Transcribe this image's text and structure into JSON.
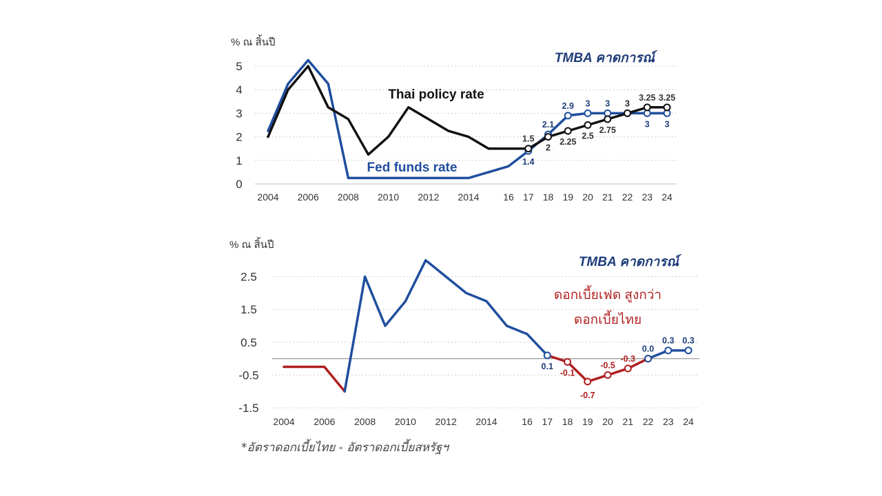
{
  "footnote": "*อัตราดอกเบี้ยไทย - อัตราดอกเบี้ยสหรัฐฯ",
  "chart_data": [
    {
      "type": "line",
      "unit_label": "% ณ สิ้นปี",
      "forecast_label": "TMBA คาดการณ์",
      "ylim": [
        0,
        5.5
      ],
      "yticks": [
        0,
        1,
        2,
        3,
        4,
        5
      ],
      "x_ticks": [
        {
          "x": 2004,
          "label": "2004"
        },
        {
          "x": 2006,
          "label": "2006"
        },
        {
          "x": 2008,
          "label": "2008"
        },
        {
          "x": 2010,
          "label": "2010"
        },
        {
          "x": 2012,
          "label": "2012"
        },
        {
          "x": 2014,
          "label": "2014"
        },
        {
          "x": 2016,
          "label": "16"
        },
        {
          "x": 2017,
          "label": "17"
        },
        {
          "x": 2018,
          "label": "18"
        },
        {
          "x": 2019,
          "label": "19"
        },
        {
          "x": 2020,
          "label": "20"
        },
        {
          "x": 2021,
          "label": "21"
        },
        {
          "x": 2022,
          "label": "22"
        },
        {
          "x": 2023,
          "label": "23"
        },
        {
          "x": 2024,
          "label": "24"
        }
      ],
      "grid": "horizontal dotted",
      "series": [
        {
          "name": "Fed funds rate",
          "color": "#1f4e9e",
          "points": [
            [
              2004,
              2.25
            ],
            [
              2005,
              4.25
            ],
            [
              2006,
              5.25
            ],
            [
              2007,
              4.25
            ],
            [
              2008,
              0.25
            ],
            [
              2009,
              0.25
            ],
            [
              2010,
              0.25
            ],
            [
              2011,
              0.25
            ],
            [
              2012,
              0.25
            ],
            [
              2013,
              0.25
            ],
            [
              2014,
              0.25
            ],
            [
              2015,
              0.5
            ],
            [
              2016,
              0.75
            ],
            [
              2017,
              1.4
            ],
            [
              2018,
              2.1
            ],
            [
              2019,
              2.9
            ],
            [
              2020,
              3
            ],
            [
              2021,
              3
            ],
            [
              2022,
              3
            ],
            [
              2023,
              3
            ],
            [
              2024,
              3
            ]
          ],
          "forecast_from": 2017,
          "labels": [
            {
              "x": 2017,
              "text": "1.4",
              "pos": "below"
            },
            {
              "x": 2018,
              "text": "2.1",
              "pos": "above"
            },
            {
              "x": 2019,
              "text": "2.9",
              "pos": "above"
            },
            {
              "x": 2020,
              "text": "3",
              "pos": "above"
            },
            {
              "x": 2021,
              "text": "3",
              "pos": "above"
            },
            {
              "x": 2022,
              "text": "3",
              "pos": "above"
            },
            {
              "x": 2023,
              "text": "3",
              "pos": "below"
            },
            {
              "x": 2024,
              "text": "3",
              "pos": "below"
            }
          ],
          "label_color": "#1f3d7a"
        },
        {
          "name": "Thai policy rate",
          "color": "#111111",
          "points": [
            [
              2004,
              2
            ],
            [
              2005,
              4
            ],
            [
              2006,
              5
            ],
            [
              2007,
              3.25
            ],
            [
              2008,
              2.75
            ],
            [
              2009,
              1.25
            ],
            [
              2010,
              2
            ],
            [
              2011,
              3.25
            ],
            [
              2012,
              2.75
            ],
            [
              2013,
              2.25
            ],
            [
              2014,
              2
            ],
            [
              2015,
              1.5
            ],
            [
              2016,
              1.5
            ],
            [
              2017,
              1.5
            ],
            [
              2018,
              2
            ],
            [
              2019,
              2.25
            ],
            [
              2020,
              2.5
            ],
            [
              2021,
              2.75
            ],
            [
              2022,
              3
            ],
            [
              2023,
              3.25
            ],
            [
              2024,
              3.25
            ]
          ],
          "forecast_from": 2017,
          "labels": [
            {
              "x": 2017,
              "text": "1.5",
              "pos": "above"
            },
            {
              "x": 2018,
              "text": "2",
              "pos": "below"
            },
            {
              "x": 2019,
              "text": "2.25",
              "pos": "below"
            },
            {
              "x": 2020,
              "text": "2.5",
              "pos": "below"
            },
            {
              "x": 2021,
              "text": "2.75",
              "pos": "below"
            },
            {
              "x": 2022,
              "text": "3",
              "pos": "above"
            },
            {
              "x": 2023,
              "text": "3.25",
              "pos": "above"
            },
            {
              "x": 2024,
              "text": "3.25",
              "pos": "above"
            }
          ],
          "label_color": "#333333"
        }
      ]
    },
    {
      "type": "line",
      "unit_label": "% ณ สิ้นปี",
      "forecast_label": "TMBA คาดการณ์",
      "annotation": [
        "ดอกเบี้ยเฟด สูงกว่า",
        "ดอกเบี้ยไทย"
      ],
      "annotation_color": "#b22222",
      "ylim": [
        -1.5,
        3.2
      ],
      "yticks": [
        -1.5,
        -0.5,
        0.5,
        1.5,
        2.5
      ],
      "ytick_labels": [
        "-1.5",
        "-0.5",
        "0.5",
        "1.5",
        "2.5"
      ],
      "x_ticks": [
        {
          "x": 2004,
          "label": "2004"
        },
        {
          "x": 2006,
          "label": "2006"
        },
        {
          "x": 2008,
          "label": "2008"
        },
        {
          "x": 2010,
          "label": "2010"
        },
        {
          "x": 2012,
          "label": "2012"
        },
        {
          "x": 2014,
          "label": "2014"
        },
        {
          "x": 2016,
          "label": "16"
        },
        {
          "x": 2017,
          "label": "17"
        },
        {
          "x": 2018,
          "label": "18"
        },
        {
          "x": 2019,
          "label": "19"
        },
        {
          "x": 2020,
          "label": "20"
        },
        {
          "x": 2021,
          "label": "21"
        },
        {
          "x": 2022,
          "label": "22"
        },
        {
          "x": 2023,
          "label": "23"
        },
        {
          "x": 2024,
          "label": "24"
        }
      ],
      "zero_line": true,
      "series": [
        {
          "color": "#b01e1e",
          "points": [
            [
              2004,
              -0.25
            ],
            [
              2005,
              -0.25
            ],
            [
              2006,
              -0.25
            ],
            [
              2007,
              -1
            ]
          ],
          "forecast_from": null,
          "labels": []
        },
        {
          "color": "#1f4e9e",
          "points": [
            [
              2007,
              -1
            ],
            [
              2008,
              2.5
            ],
            [
              2009,
              1
            ],
            [
              2010,
              1.75
            ],
            [
              2011,
              3
            ],
            [
              2012,
              2.5
            ],
            [
              2013,
              2
            ],
            [
              2014,
              1.75
            ],
            [
              2015,
              1
            ],
            [
              2016,
              0.75
            ],
            [
              2017,
              0.1
            ]
          ],
          "forecast_from": 2017,
          "labels": [
            {
              "x": 2017,
              "text": "0.1",
              "pos": "below"
            }
          ],
          "label_color": "#1f3d7a"
        },
        {
          "color": "#b01e1e",
          "points": [
            [
              2017,
              0.1
            ],
            [
              2018,
              -0.1
            ],
            [
              2019,
              -0.7
            ],
            [
              2020,
              -0.5
            ],
            [
              2021,
              -0.3
            ],
            [
              2022,
              0
            ]
          ],
          "forecast_from": 2018,
          "labels": [
            {
              "x": 2018,
              "text": "-0.1",
              "pos": "below"
            },
            {
              "x": 2019,
              "text": "-0.7",
              "pos": "below2"
            },
            {
              "x": 2020,
              "text": "-0.5",
              "pos": "above"
            },
            {
              "x": 2021,
              "text": "-0.3",
              "pos": "above"
            }
          ],
          "label_color": "#b01e1e"
        },
        {
          "color": "#1f4e9e",
          "points": [
            [
              2022,
              0
            ],
            [
              2023,
              0.25
            ],
            [
              2024,
              0.25
            ]
          ],
          "forecast_from": 2022,
          "labels": [
            {
              "x": 2022,
              "text": "0.0",
              "pos": "above"
            },
            {
              "x": 2023,
              "text": "0.3",
              "pos": "above"
            },
            {
              "x": 2024,
              "text": "0.3",
              "pos": "above"
            }
          ],
          "label_color": "#1f3d7a"
        }
      ]
    }
  ]
}
